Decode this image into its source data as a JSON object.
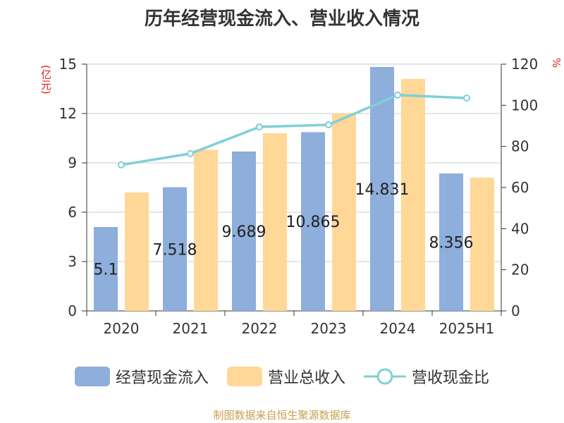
{
  "chart_data": {
    "type": "bar",
    "title": "历年经营现金流入、营业收入情况",
    "ylabel_left": "(亿元)",
    "ylabel_right": "%",
    "categories": [
      "2020",
      "2021",
      "2022",
      "2023",
      "2024",
      "2025H1"
    ],
    "ylim_left": [
      0,
      15
    ],
    "yticks_left": [
      "0",
      "3",
      "6",
      "9",
      "12",
      "15"
    ],
    "ylim_right": [
      0,
      120
    ],
    "yticks_right": [
      "0",
      "20",
      "40",
      "60",
      "80",
      "100",
      "120"
    ],
    "grid": true,
    "legend_position": "bottom",
    "series": [
      {
        "name": "经营现金流入",
        "type": "bar",
        "axis": "left",
        "color": "#8eaedb",
        "values": [
          5.1,
          7.518,
          9.689,
          10.865,
          14.831,
          8.356
        ],
        "labels": [
          "5.1",
          "7.518",
          "9.689",
          "10.865",
          "14.831",
          "8.356"
        ]
      },
      {
        "name": "营业总收入",
        "type": "bar",
        "axis": "left",
        "color": "#ffd898",
        "values": [
          7.2,
          9.8,
          10.8,
          12.0,
          14.1,
          8.1
        ]
      },
      {
        "name": "营收现金比",
        "type": "line",
        "axis": "right",
        "color": "#7fd0d6",
        "values": [
          71,
          76.5,
          89.5,
          90.5,
          105,
          103.5
        ]
      }
    ]
  },
  "source": "制图数据来自恒生聚源数据库"
}
